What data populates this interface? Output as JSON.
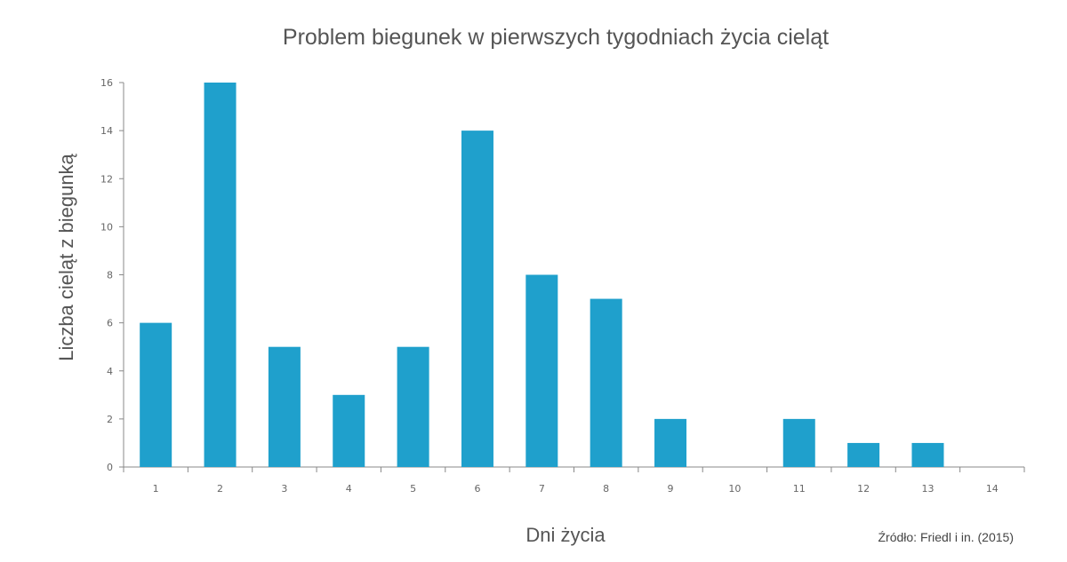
{
  "chart_data": {
    "type": "bar",
    "title": "Problem biegunek w pierwszych tygodniach życia cieląt",
    "xlabel": "Dni życia",
    "ylabel": "Liczba cieląt z biegunką",
    "categories": [
      "1",
      "2",
      "3",
      "4",
      "5",
      "6",
      "7",
      "8",
      "9",
      "10",
      "11",
      "12",
      "13",
      "14"
    ],
    "values": [
      6,
      16,
      5,
      3,
      5,
      14,
      8,
      7,
      2,
      0,
      2,
      1,
      1,
      0
    ],
    "ylim": [
      0,
      16
    ],
    "yticks": [
      "0",
      "2",
      "4",
      "6",
      "8",
      "10",
      "12",
      "14",
      "16"
    ],
    "grid": false,
    "bar_color": "#1fa0cc"
  },
  "source": "Źródło: Friedl i in. (2015)"
}
